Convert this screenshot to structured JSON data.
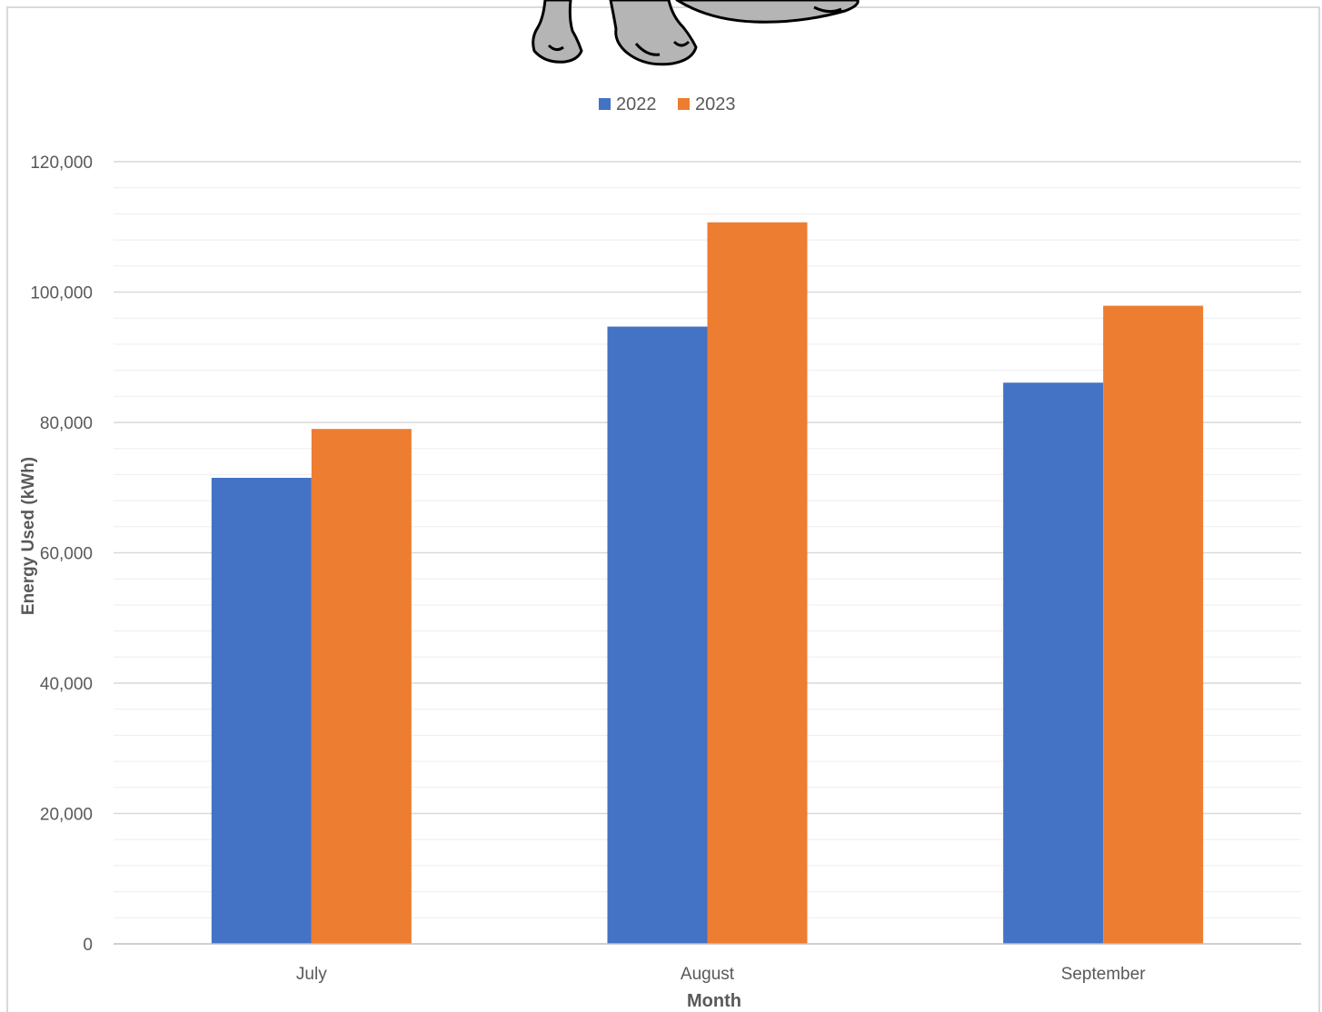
{
  "chart_data": {
    "type": "bar",
    "title": "",
    "categories": [
      "July",
      "August",
      "September"
    ],
    "series": [
      {
        "name": "2022",
        "color": "#4472C4",
        "values": [
          71500,
          94700,
          86100
        ]
      },
      {
        "name": "2023",
        "color": "#ED7D31",
        "values": [
          79000,
          110700,
          97900
        ]
      }
    ],
    "xlabel": "Month",
    "ylabel": "Energy Used (kWh)",
    "ylim": [
      0,
      120000
    ],
    "yticks": [
      0,
      20000,
      40000,
      60000,
      80000,
      100000,
      120000
    ],
    "ytick_labels": [
      "0",
      "20,000",
      "40,000",
      "60,000",
      "80,000",
      "100,000",
      "120,000"
    ],
    "gridlines": {
      "major": true,
      "minor": true
    },
    "legend_position": "top-center"
  },
  "decoration": {
    "icon": "cartoon-elephant-feet-icon"
  },
  "colors": {
    "gridline": "#D9D9D9",
    "minor_gridline": "#EDEDED",
    "axis": "#BFBFBF",
    "text": "#595959",
    "border": "#D9D9D9"
  }
}
